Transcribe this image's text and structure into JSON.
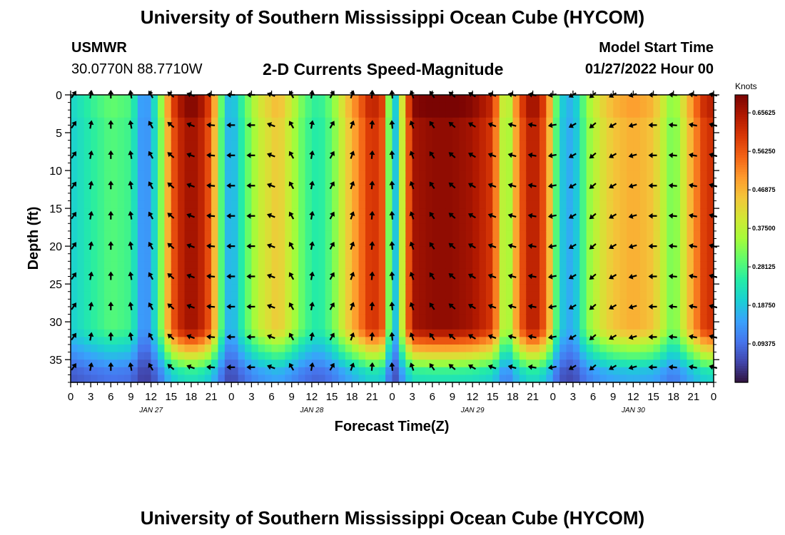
{
  "header": {
    "title": "University of Southern Mississippi Ocean Cube (HYCOM)",
    "station": "USMWR",
    "coordinates": "30.0770N  88.7710W",
    "subtitle": "2-D Currents Speed-Magnitude",
    "model_start_label": "Model Start Time",
    "model_start_value": "01/27/2022 Hour 00"
  },
  "footer": {
    "title": "University of Southern Mississippi Ocean Cube (HYCOM)"
  },
  "colors": {
    "colormap": [
      "#30123b",
      "#4145ab",
      "#4675ed",
      "#39a2fc",
      "#1bcfd4",
      "#24eca6",
      "#61fc6c",
      "#a4fc3b",
      "#d1e834",
      "#f3c63a",
      "#fe9b2d",
      "#f36315",
      "#d93806",
      "#b11901",
      "#7a0403"
    ],
    "arrow": "#000000"
  },
  "chart_data": {
    "type": "heatmap",
    "title": "2-D Currents Speed-Magnitude",
    "xlabel": "Forecast Time(Z)",
    "ylabel": "Depth (ft)",
    "x_unit": "hours since 01/27/2022 00Z",
    "xlim": [
      0,
      96
    ],
    "ylim": [
      38,
      0
    ],
    "x_tick_values": [
      0,
      3,
      6,
      9,
      12,
      15,
      18,
      21,
      24,
      27,
      30,
      33,
      36,
      39,
      42,
      45,
      48,
      51,
      54,
      57,
      60,
      63,
      66,
      69,
      72,
      75,
      78,
      81,
      84,
      87,
      90,
      93,
      96
    ],
    "x_tick_labels": [
      "0",
      "3",
      "6",
      "9",
      "12",
      "15",
      "18",
      "21",
      "0",
      "3",
      "6",
      "9",
      "12",
      "15",
      "18",
      "21",
      "0",
      "3",
      "6",
      "9",
      "12",
      "15",
      "18",
      "21",
      "0",
      "3",
      "6",
      "9",
      "12",
      "15",
      "18",
      "21",
      "0"
    ],
    "y_tick_values": [
      0,
      5,
      10,
      15,
      20,
      25,
      30,
      35
    ],
    "y_tick_labels": [
      "0",
      "5",
      "10",
      "15",
      "20",
      "25",
      "30",
      "35"
    ],
    "day_labels": [
      {
        "hour": 12,
        "text": "JAN 27"
      },
      {
        "hour": 36,
        "text": "JAN 28"
      },
      {
        "hour": 60,
        "text": "JAN 29"
      },
      {
        "hour": 84,
        "text": "JAN 30"
      }
    ],
    "colorbar": {
      "label": "Knots",
      "range": [
        0,
        0.7
      ],
      "ticks": [
        0.09375,
        0.1875,
        0.28125,
        0.375,
        0.46875,
        0.5625,
        0.65625
      ],
      "tick_labels": [
        "0.09375",
        "0.18750",
        "0.28125",
        "0.37500",
        "0.46875",
        "0.56250",
        "0.65625"
      ]
    },
    "speed_profile": {
      "times": [
        0,
        3,
        6,
        9,
        11,
        13,
        15,
        17,
        19,
        21,
        23,
        24,
        26,
        28,
        31,
        33,
        35,
        37,
        39,
        41,
        43,
        45,
        47,
        48,
        49,
        51,
        54,
        57,
        60,
        63,
        65,
        67,
        69,
        71,
        73,
        75,
        77,
        79,
        81,
        84,
        87,
        90,
        93,
        95,
        96
      ],
      "speeds": [
        0.2,
        0.25,
        0.29,
        0.27,
        0.1,
        0.25,
        0.55,
        0.66,
        0.66,
        0.55,
        0.2,
        0.15,
        0.28,
        0.38,
        0.45,
        0.37,
        0.28,
        0.24,
        0.3,
        0.42,
        0.52,
        0.62,
        0.55,
        0.08,
        0.3,
        0.66,
        0.68,
        0.68,
        0.66,
        0.6,
        0.3,
        0.55,
        0.66,
        0.55,
        0.2,
        0.15,
        0.32,
        0.4,
        0.45,
        0.48,
        0.45,
        0.3,
        0.5,
        0.62,
        0.6
      ]
    },
    "arrows": {
      "hour_spacing": 3,
      "depths": [
        0,
        4,
        8,
        12,
        16,
        20,
        24,
        28,
        32,
        36
      ],
      "directions_deg_by_hour": [
        145,
        170,
        180,
        190,
        210,
        230,
        250,
        265,
        270,
        270,
        250,
        210,
        170,
        150,
        160,
        175,
        185,
        200,
        215,
        230,
        240,
        250,
        255,
        260,
        280,
        300,
        310,
        300,
        285,
        270,
        265,
        260,
        255
      ]
    }
  }
}
